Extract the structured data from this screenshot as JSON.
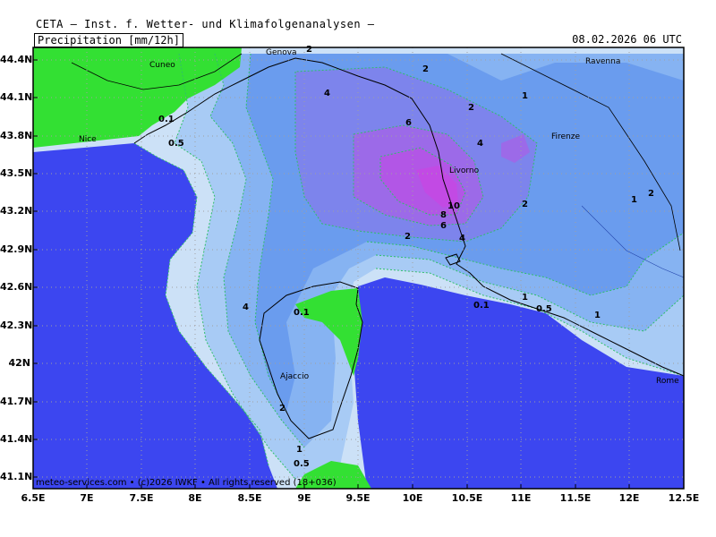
{
  "header": {
    "title": "CETA — Inst. f. Wetter- und Klimafolgenanalysen —",
    "parameter": "Precipitation [mm/12h]",
    "datetime": "08.02.2026  06 UTC"
  },
  "credit": "meteo-services.com • (c)2026 IWKF • All rights reserved (18+036)",
  "axes": {
    "lat_labels": [
      "44.4N",
      "44.1N",
      "43.8N",
      "43.5N",
      "43.2N",
      "42.9N",
      "42.6N",
      "42.3N",
      "42N",
      "41.7N",
      "41.4N",
      "41.1N"
    ],
    "lon_labels": [
      "6.5E",
      "7E",
      "7.5E",
      "8E",
      "8.5E",
      "9E",
      "9.5E",
      "10E",
      "10.5E",
      "11E",
      "11.5E",
      "12E",
      "12.5E"
    ]
  },
  "cities": [
    "Genova",
    "Cuneo",
    "Ravenna",
    "Nice",
    "Firenze",
    "Livorno",
    "Ajaccio",
    "Rome"
  ],
  "contour_labels": [
    "2",
    "0.1",
    "0.5",
    "4",
    "6",
    "2",
    "4",
    "1",
    "2",
    "10",
    "8",
    "6",
    "4",
    "2",
    "2",
    "1",
    "2",
    "1",
    "0.1",
    "0.5",
    "1",
    "0.1",
    "4",
    "2",
    "1",
    "0.5"
  ],
  "colors": {
    "land_dry": "#33e033",
    "sea_dry": "#3c46f0",
    "p0_1": "#cce1f7",
    "p0_5": "#a8cbf5",
    "p1": "#86b3f2",
    "p2": "#6a9cee",
    "p4": "#7d84ec",
    "p6": "#9c6ae8",
    "p8": "#b256e6",
    "p10": "#c24ae4",
    "contour": "#2fbf6a"
  }
}
